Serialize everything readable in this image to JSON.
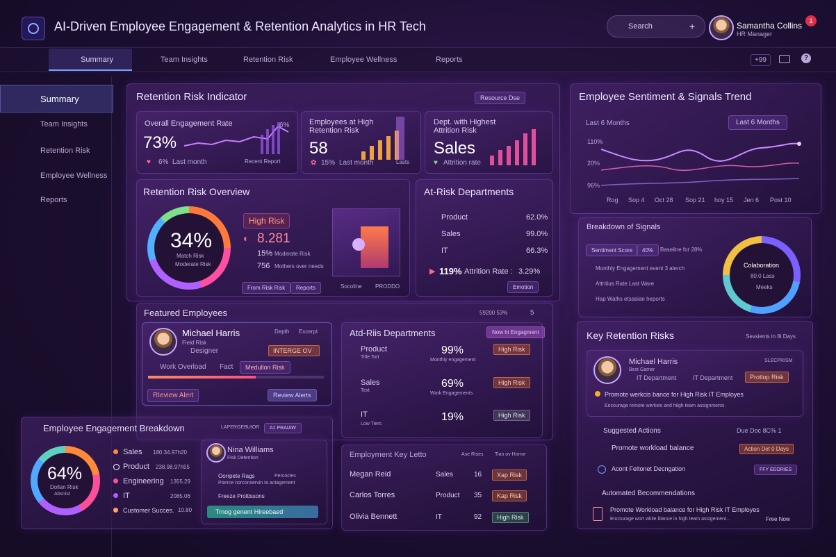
{
  "header": {
    "title": "AI-Driven Employee Engagement & Retention Analytics in HR Tech",
    "search": "Search",
    "user_name": "Samantha Collins",
    "user_role": "HR Manager",
    "badge": "1"
  },
  "nav": {
    "tabs": [
      "Summary",
      "Team Insights",
      "Retention Risk",
      "Employee Wellness",
      "Reports"
    ],
    "count": "+99"
  },
  "sidebar": {
    "items": [
      "Summary",
      "Team Insights",
      "Retention Risk",
      "Employee Wellness",
      "Reports"
    ]
  },
  "indicator": {
    "title": "Retention Risk Indicator",
    "filter": "Resource Dse",
    "cards": [
      {
        "label": "Overall Engagement Rate",
        "value": "73%",
        "delta": "6%",
        "note": "Last month",
        "link": "Recent Report",
        "peak": "6%"
      },
      {
        "label": "Employees at High Retention Risk",
        "value": "58",
        "delta": "15%",
        "note": "Last month",
        "link": "Lasts"
      },
      {
        "label": "Dept. with Highest Attrition Risk",
        "value": "Sales",
        "note": "Attrition rate"
      }
    ]
  },
  "overview": {
    "title": "Retention Risk Overview",
    "donut_value": "34%",
    "donut_label1": "Match Risk",
    "donut_label2": "Moderate Risk",
    "level": "High Risk",
    "level_value": "8.281",
    "stats": [
      {
        "value": "15%",
        "label": "Moderate Risk"
      },
      {
        "value": "756",
        "label": "Mothers over needs"
      }
    ],
    "buttons": [
      "From Risk Risk",
      "Reports",
      "Socoline",
      "PRODDO"
    ]
  },
  "at_risk": {
    "title": "At-Risk Departments",
    "rows": [
      {
        "name": "Product",
        "value": "62.0%"
      },
      {
        "name": "Sales",
        "value": "99.0%"
      },
      {
        "name": "IT",
        "value": "66.3%"
      }
    ],
    "rate": "119%",
    "rate_label": "Attrition Rate :",
    "rate_value": "3.29%",
    "button": "Emotion"
  },
  "featured": {
    "title": "Featured Employees",
    "filter": "59200 53%",
    "count": "5",
    "employee": {
      "name": "Michael Harris",
      "sub": "Field Risk",
      "role": "Designer",
      "col1": "Depth",
      "col2": "Excerpt",
      "badge": "INTERGE OV",
      "tags": [
        "Work Overload",
        "Fact",
        "Medullon Risk"
      ],
      "action1": "RIeview Alert",
      "action2": "Review Alerts"
    }
  },
  "departments": {
    "title": "Atd-Riis Departments",
    "badge": "Now hi Engagment",
    "rows": [
      {
        "name": "Product",
        "sub": "Title Tort",
        "value": "99%",
        "note": "Monthly engagement",
        "risk": "High Risk"
      },
      {
        "name": "Sales",
        "sub": "Text",
        "value": "69%",
        "note": "Work Engagements",
        "risk": "High Risk"
      },
      {
        "name": "IT",
        "sub": "Low Tiers",
        "value": "19%",
        "risk": "High Risk"
      }
    ]
  },
  "breakdown": {
    "title": "Employee Engagement Breakdown",
    "filter1": "LAPERGEBUIOR",
    "filter2": "A1 PRAIAW",
    "donut_value": "64%",
    "donut_label1": "Dollan Risk",
    "donut_label2": "Absnist",
    "rows": [
      {
        "name": "Sales",
        "value": "180.34.97h20"
      },
      {
        "name": "Product",
        "value": "238.98.97h55"
      },
      {
        "name": "Engineering",
        "value": "1355.29"
      },
      {
        "name": "IT",
        "value": "2085.06"
      },
      {
        "name": "Customer Succes.",
        "value": "10.80"
      }
    ],
    "person": {
      "name": "Nina Williams",
      "sub": "Fisk Detention",
      "item1": "Oorrpete Rags",
      "item1_tag": "Percocles",
      "item1_sub": "Poerce norconservin ta actagement",
      "item2": "Freeze Prottissons",
      "select": "Trnog genent Hireebaed"
    }
  },
  "key_list": {
    "title": "Employment Key Letto",
    "filter1": "Ase Rises",
    "filter2": "Tian ov Horror",
    "rows": [
      {
        "name": "Megan Reid",
        "dept": "Sales",
        "value": "16",
        "risk": "Xap Risk"
      },
      {
        "name": "Carlos Torres",
        "dept": "Product",
        "value": "35",
        "risk": "Kap Risk"
      },
      {
        "name": "Olivia Bennett",
        "dept": "IT",
        "value": "92",
        "risk": "High Risk"
      }
    ]
  },
  "sentiment": {
    "title": "Employee Sentiment & Signals Trend",
    "range_left": "Last 6 Months",
    "range_right": "Last 6 Months",
    "y_labels": [
      "110%",
      "20%",
      "96%"
    ],
    "x_labels": [
      "Rog",
      "Sop 4",
      "Oct 28",
      "Sop 21",
      "hoy 15",
      "Jen 6",
      "Post 10"
    ]
  },
  "signals": {
    "title": "Breakdown of Signals",
    "chip1": "Sentiment Score",
    "chip2": "40%",
    "chip3": "Baseline for 28%",
    "items": [
      "Monthly Engagement event 3 alerch",
      "Attritius Rate Last Ware",
      "Hap Walhs etsasian heports"
    ],
    "donut_title": "Colaboration",
    "donut_value": "80.0 Lass",
    "donut_sub": "Meeks"
  },
  "key_risks": {
    "title": "Key Retention Risks",
    "filter": "Sevsients in 8i Days",
    "employee": {
      "name": "Michael Harris",
      "sub": "Best Gamer",
      "dept1": "IT Department",
      "dept2": "IT Department",
      "badge": "SLECPRISM",
      "risk": "Protlop Risk",
      "headline": "Promote werkcis bance for High Risk IT Employes",
      "detail": "Encourage remote werkeis and hiigh team assignments."
    },
    "actions_title": "Suggested Actions",
    "actions_due": "Due Doc 8C% 1",
    "actions": [
      {
        "label": "Promote workload balance",
        "tag": "Action Det 0 Days"
      },
      {
        "label": "Acont Feltonet Decngation",
        "tag": "FFY EEORIES"
      }
    ],
    "auto_title": "Automated Becommendations",
    "auto_headline": "Promote Workload balance for High Risk IT Employes",
    "auto_detail": "Encourage wort wklie blance in high team assigement...",
    "auto_link": "Free Now"
  }
}
